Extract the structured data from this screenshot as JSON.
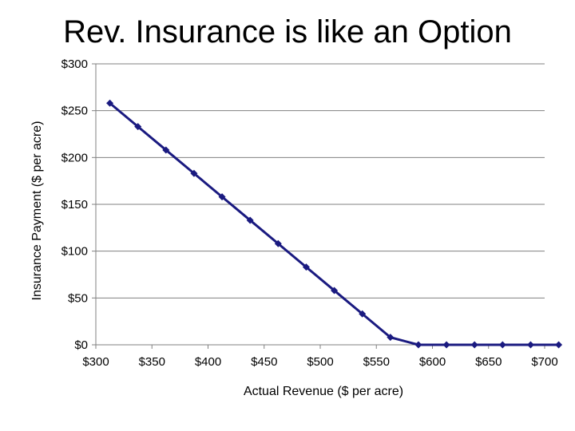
{
  "chart_data": {
    "type": "line",
    "title": "Rev. Insurance is like an Option",
    "xlabel": "Actual Revenue ($ per acre)",
    "ylabel": "Insurance Payment ($ per acre)",
    "xlim": [
      300,
      700
    ],
    "ylim": [
      0,
      300
    ],
    "x_ticks": [
      300,
      350,
      400,
      450,
      500,
      550,
      600,
      650,
      700
    ],
    "x_tick_labels": [
      "$300",
      "$350",
      "$400",
      "$450",
      "$500",
      "$550",
      "$600",
      "$650",
      "$700"
    ],
    "y_ticks": [
      0,
      50,
      100,
      150,
      200,
      250,
      300
    ],
    "y_tick_labels": [
      "$0",
      "$50",
      "$100",
      "$150",
      "$200",
      "$250",
      "$300"
    ],
    "grid": "horizontal",
    "legend": "none",
    "series": [
      {
        "color": "#1a1a80",
        "marker": "diamond",
        "x": [
          312.5,
          337.5,
          362.5,
          387.5,
          412.5,
          437.5,
          462.5,
          487.5,
          512.5,
          537.5,
          562.5,
          587.5,
          612.5,
          637.5,
          662.5,
          687.5,
          712.5
        ],
        "y": [
          258,
          233,
          208,
          183,
          158,
          133,
          108,
          83,
          58,
          33,
          8,
          0,
          0,
          0,
          0,
          0,
          0
        ]
      }
    ]
  }
}
